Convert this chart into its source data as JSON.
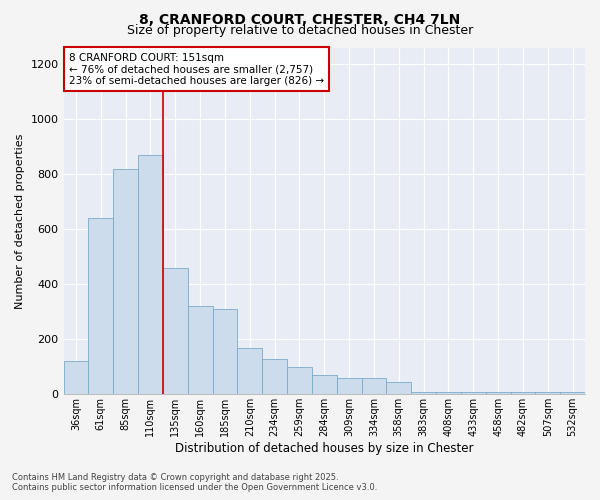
{
  "title": "8, CRANFORD COURT, CHESTER, CH4 7LN",
  "subtitle": "Size of property relative to detached houses in Chester",
  "xlabel": "Distribution of detached houses by size in Chester",
  "ylabel": "Number of detached properties",
  "bar_color": "#ccdcec",
  "bar_edge_color": "#7aaac8",
  "plot_bg_color": "#e8edf5",
  "fig_bg_color": "#f4f4f4",
  "categories": [
    "36sqm",
    "61sqm",
    "85sqm",
    "110sqm",
    "135sqm",
    "160sqm",
    "185sqm",
    "210sqm",
    "234sqm",
    "259sqm",
    "284sqm",
    "309sqm",
    "334sqm",
    "358sqm",
    "383sqm",
    "408sqm",
    "433sqm",
    "458sqm",
    "482sqm",
    "507sqm",
    "532sqm"
  ],
  "values": [
    120,
    640,
    820,
    870,
    460,
    320,
    310,
    170,
    130,
    100,
    70,
    60,
    60,
    45,
    10,
    10,
    10,
    10,
    10,
    10,
    10
  ],
  "ylim": [
    0,
    1260
  ],
  "yticks": [
    0,
    200,
    400,
    600,
    800,
    1000,
    1200
  ],
  "vline_pos": 3.5,
  "vline_color": "#cc0000",
  "annotation_title": "8 CRANFORD COURT: 151sqm",
  "annotation_line1": "← 76% of detached houses are smaller (2,757)",
  "annotation_line2": "23% of semi-detached houses are larger (826) →",
  "annotation_box_color": "#ffffff",
  "annotation_border_color": "#cc0000",
  "footer_line1": "Contains HM Land Registry data © Crown copyright and database right 2025.",
  "footer_line2": "Contains public sector information licensed under the Open Government Licence v3.0."
}
